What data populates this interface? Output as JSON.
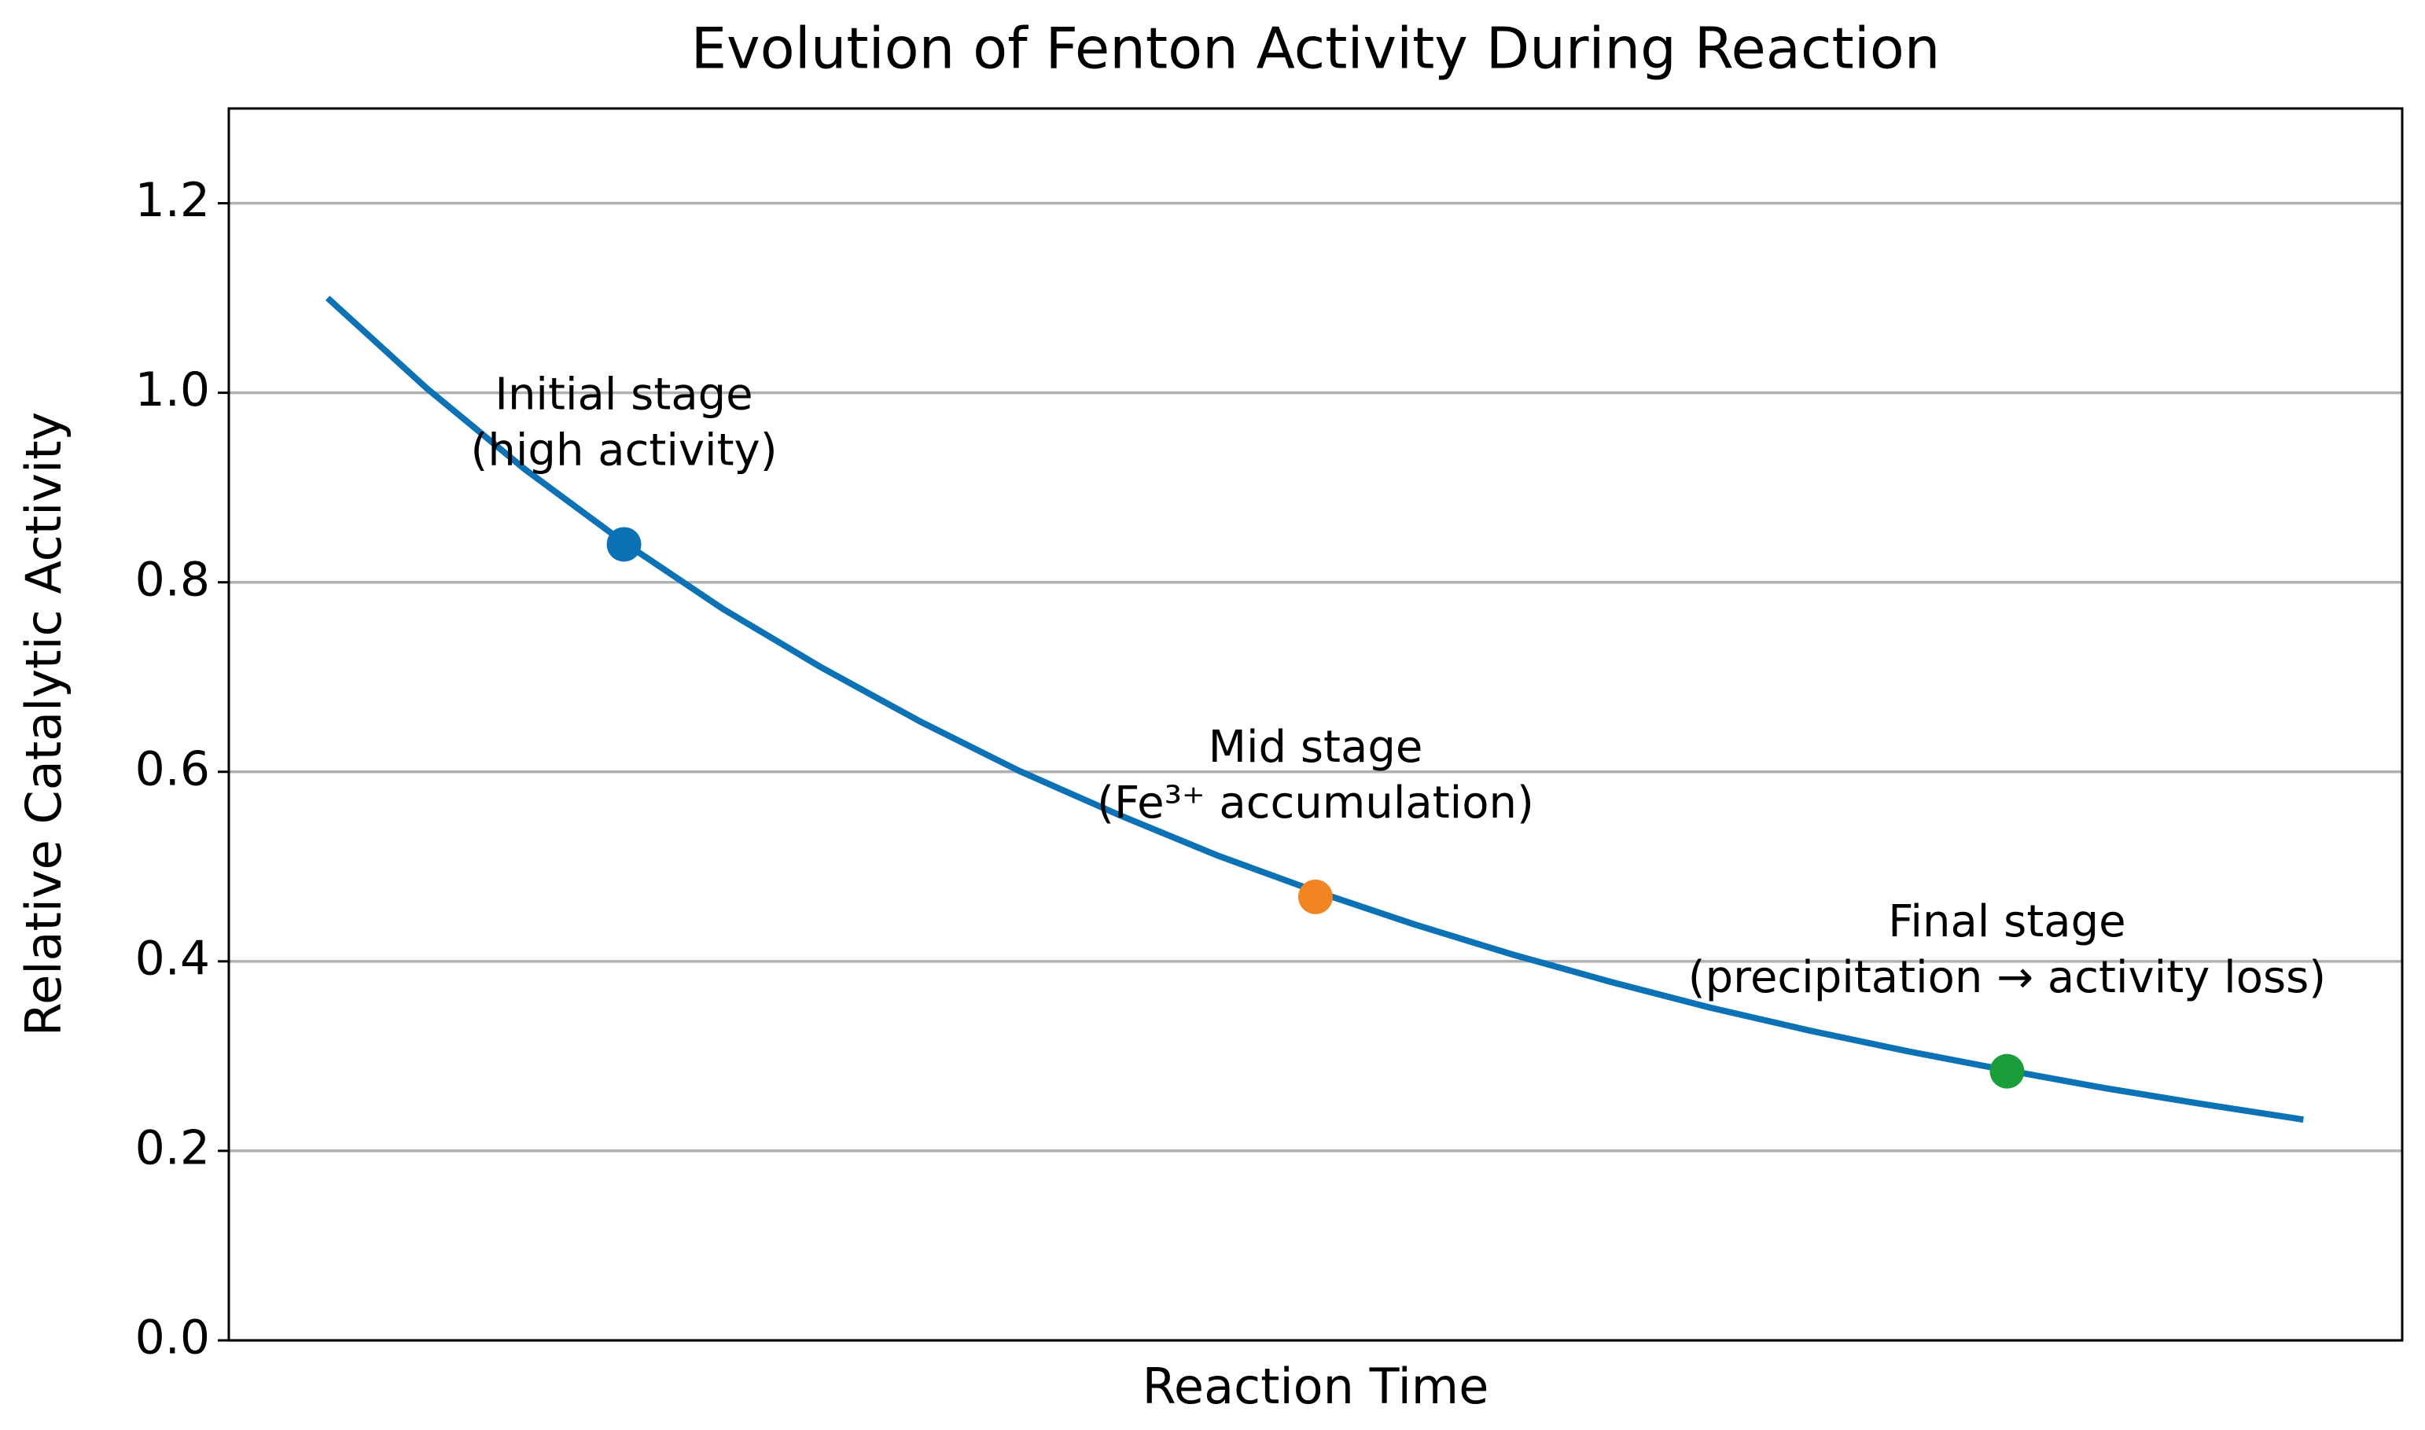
{
  "chart_data": {
    "type": "line",
    "title": "Evolution of Fenton Activity During Reaction",
    "xlabel": "Reaction Time",
    "ylabel": "Relative Catalytic Activity",
    "x": [
      0,
      0.5,
      1,
      1.5,
      2,
      2.5,
      3,
      3.5,
      4,
      4.5,
      5,
      5.5,
      6,
      6.5,
      7,
      7.5,
      8,
      8.5,
      9,
      9.5,
      10
    ],
    "series": [
      {
        "color": "#0a72b5",
        "values": [
          1.1,
          1.005,
          0.919,
          0.842,
          0.772,
          0.71,
          0.653,
          0.601,
          0.555,
          0.512,
          0.474,
          0.439,
          0.407,
          0.378,
          0.351,
          0.327,
          0.305,
          0.285,
          0.266,
          0.249,
          0.233
        ]
      }
    ],
    "points": [
      {
        "x": 1.5,
        "y": 0.84,
        "color": "#0a72b5",
        "annotation": [
          "Initial stage",
          "(high activity)"
        ]
      },
      {
        "x": 5,
        "y": 0.468,
        "color": "#f28522",
        "annotation": [
          "Mid stage",
          "(Fe³⁺ accumulation)"
        ]
      },
      {
        "x": 8.5,
        "y": 0.284,
        "color": "#1a9e3a",
        "annotation": [
          "Final stage",
          "(precipitation → activity loss)"
        ]
      }
    ],
    "xlim": [
      -0.5,
      10.5
    ],
    "ylim": [
      0,
      1.3
    ],
    "yticks": [
      {
        "value": 0,
        "label": "0.0"
      },
      0.2,
      0.4,
      0.6,
      0.8,
      {
        "value": 1,
        "label": "1.0"
      },
      1.2
    ],
    "grid": true
  }
}
